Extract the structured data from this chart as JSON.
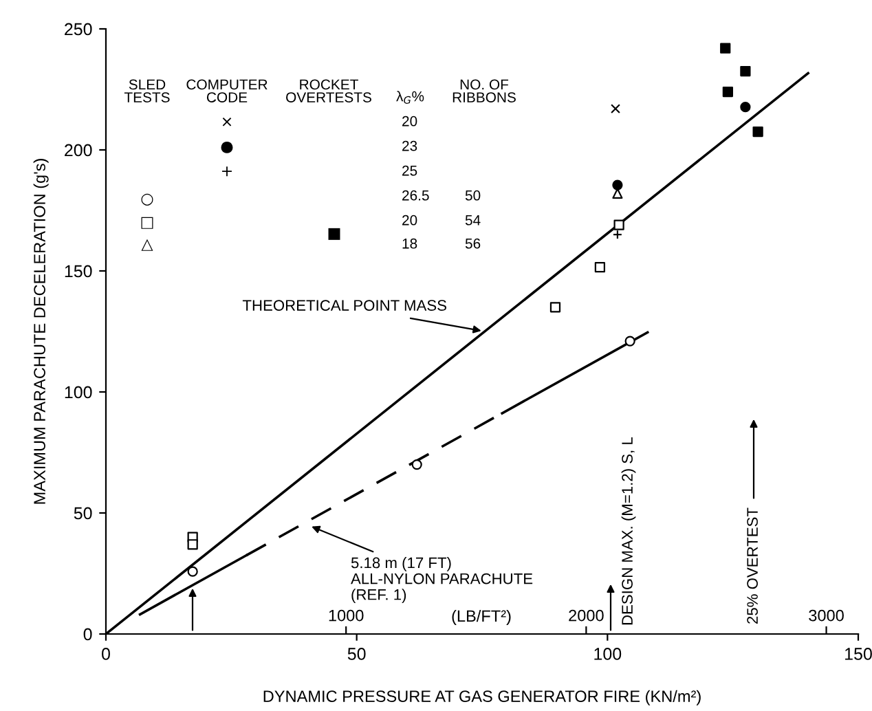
{
  "chart_data": {
    "type": "scatter",
    "xlabel": "DYNAMIC PRESSURE AT GAS GENERATOR FIRE (KN/m²)",
    "ylabel": "MAXIMUM PARACHUTE DECELERATION (g's)",
    "xlim": [
      0,
      150
    ],
    "xticks": [
      0,
      50,
      100,
      150
    ],
    "ylim": [
      0,
      250
    ],
    "yticks": [
      0,
      50,
      100,
      150,
      200,
      250
    ],
    "x2lim": [
      0,
      3133
    ],
    "x2ticks": [
      1000,
      2000,
      3000
    ],
    "x2label": "(LB/FT²)",
    "grid": false,
    "series": [
      {
        "marker": "circle-open",
        "color": "#000000",
        "x": [
          17.3,
          62,
          104.5
        ],
        "values": [
          25.8,
          70,
          121
        ]
      },
      {
        "marker": "square-open",
        "color": "#000000",
        "x": [
          17.3,
          17.3,
          89.6,
          98.5,
          102.3
        ],
        "values": [
          40,
          37,
          135,
          151.5,
          169
        ]
      },
      {
        "marker": "triangle-open",
        "color": "#000000",
        "x": [
          102
        ],
        "values": [
          182
        ]
      },
      {
        "marker": "cross",
        "color": "#000000",
        "x": [
          101.6
        ],
        "values": [
          217
        ]
      },
      {
        "marker": "circle",
        "color": "#000000",
        "x": [
          102,
          127.5
        ],
        "values": [
          185.5,
          217.7
        ]
      },
      {
        "marker": "plus",
        "color": "#000000",
        "x": [
          102
        ],
        "values": [
          165
        ]
      },
      {
        "marker": "square",
        "color": "#000000",
        "x": [
          123.5,
          127.5,
          124,
          130
        ],
        "values": [
          242,
          232.5,
          224,
          207.5
        ]
      },
      {
        "type": "line",
        "line_style": "solid",
        "color": "#000000",
        "x": [
          0,
          140
        ],
        "values": [
          0,
          231.7
        ]
      },
      {
        "type": "line",
        "line_style": "solid",
        "color": "#000000",
        "x": [
          6.8,
          28
        ],
        "values": [
          8.1,
          32.5
        ]
      },
      {
        "type": "line",
        "line_style": "dashed",
        "color": "#000000",
        "x": [
          28,
          79
        ],
        "values": [
          32.5,
          91.2
        ]
      },
      {
        "type": "line",
        "line_style": "solid",
        "color": "#000000",
        "x": [
          79,
          108
        ],
        "values": [
          91.2,
          124.6
        ]
      }
    ],
    "annotations": [
      "SLED\nTESTS",
      "COMPUTER\nCODE",
      "ROCKET\nOVERTESTS",
      "λ$_{G}$%",
      "NO. OF\nRIBBONS",
      "20",
      "23",
      "25",
      "26.5",
      "20",
      "18",
      "50",
      "54",
      "56",
      "×",
      "●",
      "+",
      "○",
      "□",
      "△",
      "■",
      {
        "text": "THEORETICAL POINT MASS",
        "x": 75.6,
        "y": 125
      },
      {
        "text": "5.18 m (17 FT)\nALL-NYLON PARACHUTE\n(REF. 1)",
        "x": 40.3,
        "y": 45
      },
      "DESIGN MAX. (M=1.2) S, L",
      "25% OVERTEST"
    ]
  }
}
